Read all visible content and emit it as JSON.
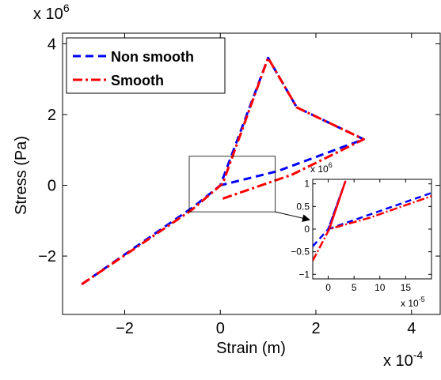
{
  "chart_data": {
    "type": "line",
    "xlabel": "Strain (m)",
    "ylabel": "Stress (Pa)",
    "x_exponent_label": "x 10",
    "x_exponent_power": "-4",
    "y_exponent_label": "x 10",
    "y_exponent_power": "6",
    "xlim": [
      -3.3,
      4.6
    ],
    "ylim": [
      -3.65,
      4.3
    ],
    "xticks": [
      -2,
      0,
      2,
      4
    ],
    "yticks": [
      -2,
      0,
      2,
      4
    ],
    "xtick_labels": [
      "−2",
      "0",
      "2",
      "4"
    ],
    "ytick_labels": [
      "−2",
      "0",
      "2",
      "4"
    ],
    "legend_placement": "top-left",
    "series": [
      {
        "name": "Non smooth",
        "color": "#0000ff",
        "style": "dashed",
        "x": [
          -2.9,
          -0.55,
          0,
          1.0,
          1.6,
          3.0,
          1.2,
          0
        ],
        "y": [
          -2.8,
          -0.6,
          0,
          3.6,
          2.2,
          1.3,
          0.4,
          0
        ]
      },
      {
        "name": "Smooth",
        "color": "#ff0000",
        "style": "dashdot",
        "x": [
          -2.9,
          -0.6,
          0.05,
          1.0,
          1.6,
          3.0,
          1.5,
          0
        ],
        "y": [
          -2.8,
          -0.7,
          0.05,
          3.6,
          2.2,
          1.3,
          0.3,
          -0.4
        ]
      }
    ],
    "zoom_box": {
      "xlim": [
        -0.65,
        1.15
      ],
      "ylim": [
        -0.75,
        0.82
      ]
    },
    "inset": {
      "xlim": [
        -3,
        20
      ],
      "ylim": [
        -1.1,
        1.1
      ],
      "xticks": [
        0,
        5,
        10,
        15
      ],
      "yticks": [
        -1,
        -0.5,
        0,
        0.5,
        1
      ],
      "xtick_labels": [
        "0",
        "5",
        "10",
        "15"
      ],
      "ytick_labels": [
        "−1",
        "−0.5",
        "0",
        "0.5",
        "1"
      ],
      "x_exponent_label": "x 10",
      "x_exponent_power": "-5",
      "y_exponent_label": "x 10",
      "y_exponent_power": "6",
      "series": [
        {
          "name": "Non smooth",
          "x": [
            -3,
            0,
            3.3,
            0,
            20
          ],
          "y": [
            -0.38,
            0,
            1.05,
            0,
            0.8
          ]
        },
        {
          "name": "Smooth",
          "x": [
            -3,
            0.2,
            3.3,
            0.2,
            8,
            20
          ],
          "y": [
            -0.7,
            0.0,
            1.05,
            0.0,
            0.25,
            0.73
          ]
        }
      ]
    }
  }
}
